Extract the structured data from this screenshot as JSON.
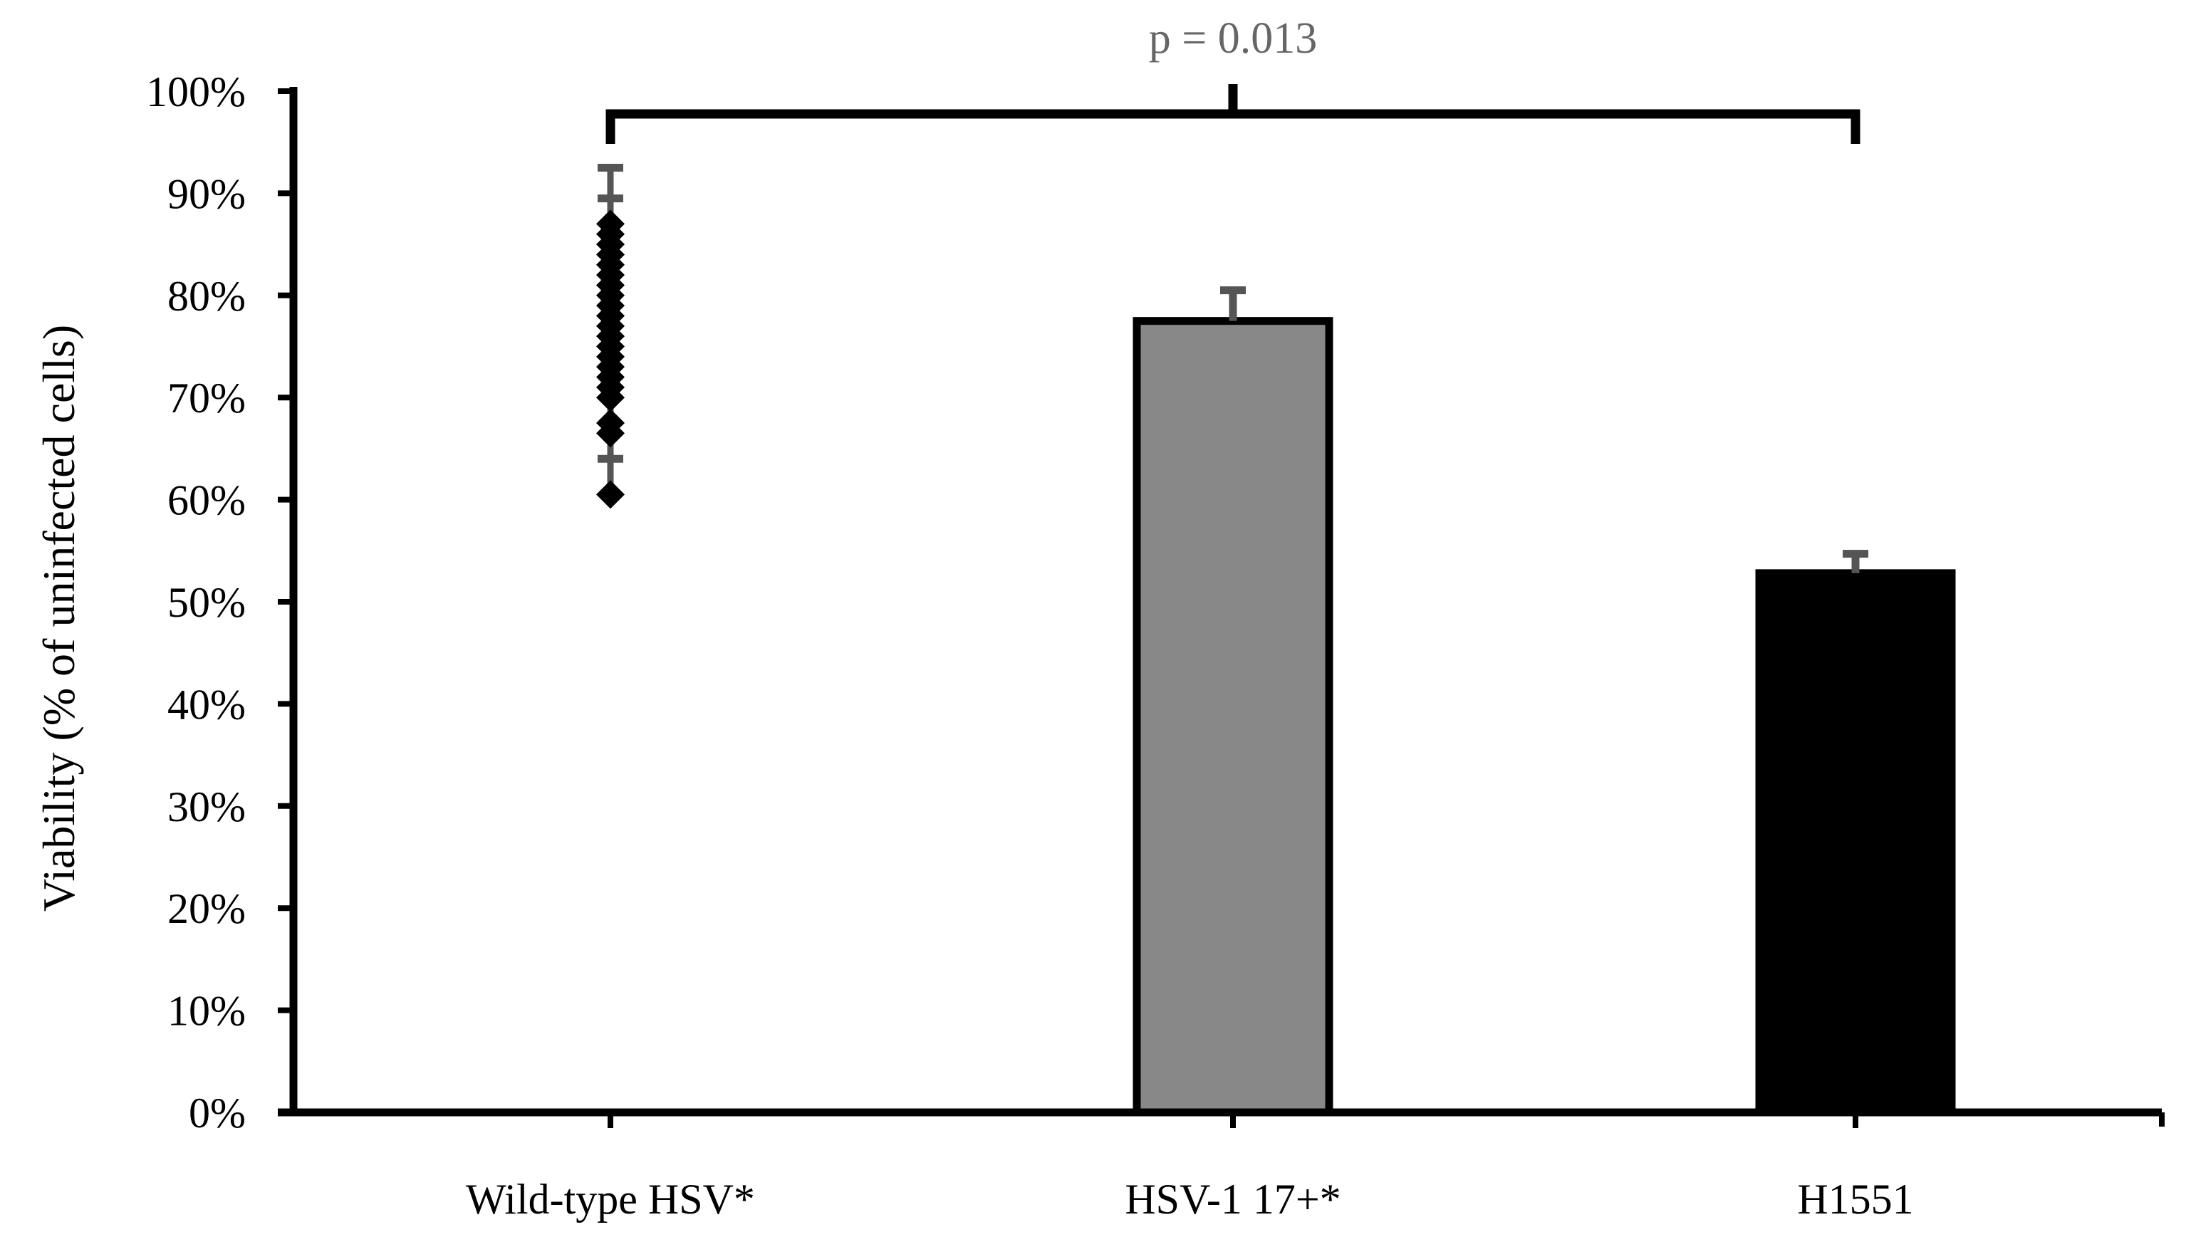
{
  "chart_data": {
    "type": "bar",
    "title": "",
    "xlabel": "",
    "ylabel": "Viability (% of uninfected cells)",
    "ylim": [
      0,
      100
    ],
    "yticks": [
      "0%",
      "10%",
      "20%",
      "30%",
      "40%",
      "50%",
      "60%",
      "70%",
      "80%",
      "90%",
      "100%"
    ],
    "grid": false,
    "categories": [
      "Wild-type HSV*",
      "HSV-1 17+*",
      "H1551"
    ],
    "values": [
      null,
      77.5,
      52.8
    ],
    "error_bars": [
      null,
      3.0,
      1.9
    ],
    "bar_colors": [
      null,
      "#888888",
      "#000000"
    ],
    "wild_type_points": [
      60.5,
      66.5,
      67.5,
      70,
      71,
      72,
      73,
      74,
      75,
      76,
      77,
      78,
      79,
      80,
      81,
      82,
      83,
      84,
      85,
      86,
      87
    ],
    "wild_type_error_caps": [
      92.5,
      89.5,
      64
    ],
    "significance": {
      "label": "p = 0.013",
      "from": "Wild-type HSV*",
      "to": "H1551",
      "color": "#666666"
    }
  }
}
